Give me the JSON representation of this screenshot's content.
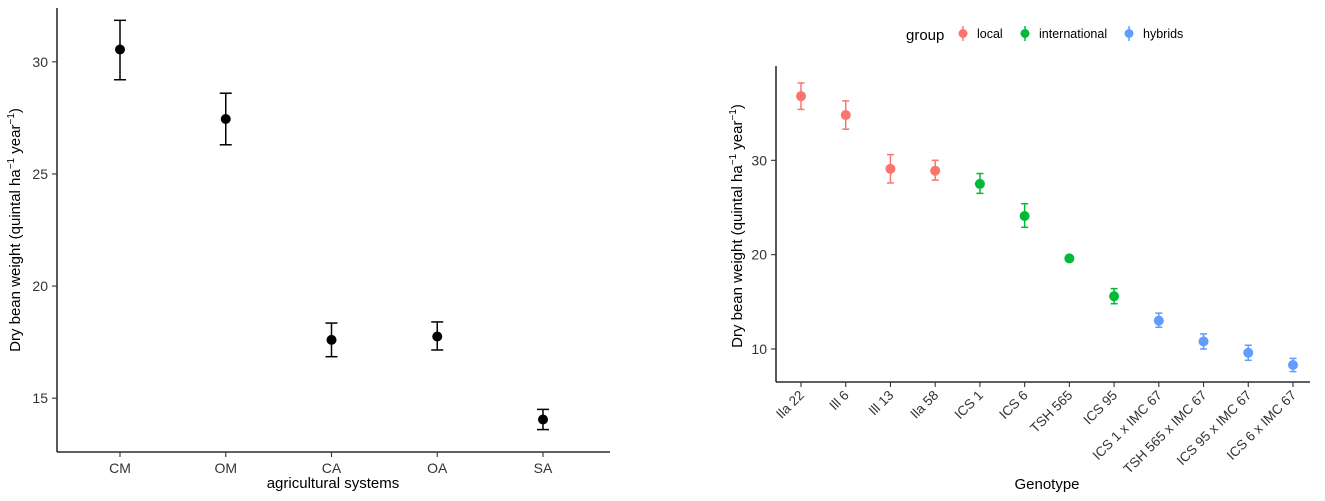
{
  "chart_data": [
    {
      "type": "scatter",
      "xlabel": "agricultural systems",
      "ylabel": "Dry bean weight (quintal ha",
      "ylabel_sup1": "−1",
      "ylabel_mid": " year",
      "ylabel_sup2": "−1",
      "ylabel_end": ")",
      "categories": [
        "CM",
        "OM",
        "CA",
        "OA",
        "SA"
      ],
      "yticks": [
        15,
        20,
        25,
        30
      ],
      "ylim": [
        12.6,
        32.4
      ],
      "grid": false,
      "colors": {
        "point": "#000000"
      },
      "series": [
        {
          "values": [
            30.55,
            27.45,
            17.6,
            17.75,
            14.05
          ],
          "lower": [
            29.2,
            26.3,
            16.85,
            17.15,
            13.6
          ],
          "upper": [
            31.85,
            28.6,
            18.35,
            18.4,
            14.5
          ]
        }
      ]
    },
    {
      "type": "scatter",
      "xlabel": "Genotype",
      "ylabel": "Dry bean weight (quintal ha",
      "ylabel_sup1": "−1",
      "ylabel_mid": " year",
      "ylabel_sup2": "−1",
      "ylabel_end": ")",
      "legend_title": "group",
      "legend_position": "top",
      "categories": [
        "Ila 22",
        "Ill 6",
        "Ill 13",
        "Ila 58",
        "ICS 1",
        "ICS 6",
        "TSH 565",
        "ICS 95",
        "ICS 1 x IMC 67",
        "TSH 565 x IMC 67",
        "ICS 95 x IMC 67",
        "ICS 6 x IMC 67"
      ],
      "yticks": [
        10,
        20,
        30
      ],
      "ylim": [
        6.5,
        40
      ],
      "grid": false,
      "series": [
        {
          "name": "local",
          "color": "#F8766D",
          "indices": [
            0,
            1,
            2,
            3
          ],
          "values": [
            36.8,
            34.8,
            29.1,
            28.9
          ],
          "lower": [
            35.4,
            33.3,
            27.6,
            27.9
          ],
          "upper": [
            38.2,
            36.3,
            30.6,
            30.0
          ]
        },
        {
          "name": "international",
          "color": "#00BA38",
          "indices": [
            4,
            5,
            6,
            7
          ],
          "values": [
            27.5,
            24.1,
            19.6,
            15.6
          ],
          "lower": [
            26.5,
            22.9,
            19.3,
            14.8
          ],
          "upper": [
            28.6,
            25.4,
            19.9,
            16.4
          ]
        },
        {
          "name": "hybrids",
          "color": "#619CFF",
          "indices": [
            8,
            9,
            10,
            11
          ],
          "values": [
            13.0,
            10.8,
            9.6,
            8.3
          ],
          "lower": [
            12.3,
            10.0,
            8.8,
            7.6
          ],
          "upper": [
            13.8,
            11.6,
            10.4,
            9.0
          ]
        }
      ]
    }
  ]
}
